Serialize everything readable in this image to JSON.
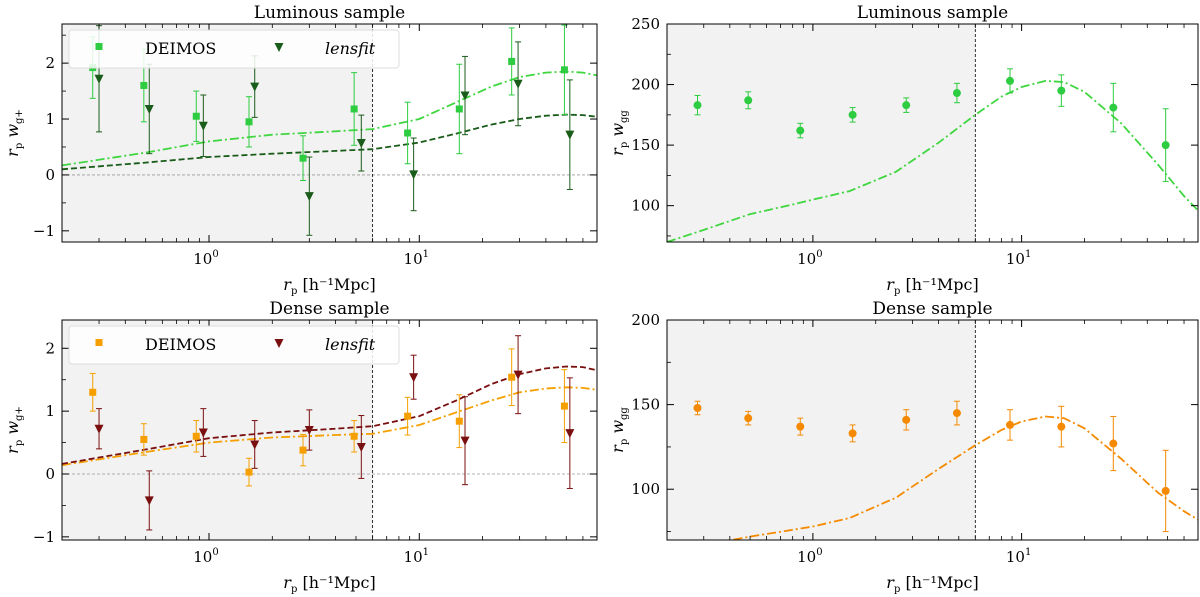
{
  "chart_data": [
    {
      "id": "top-left",
      "type": "scatter",
      "title": "Luminous sample",
      "xscale": "log",
      "xlim": [
        0.2,
        70
      ],
      "ylim": [
        -1.2,
        2.7
      ],
      "xticks": [
        {
          "value": 1,
          "base": "10",
          "exp": "0"
        },
        {
          "value": 10,
          "base": "10",
          "exp": "1"
        }
      ],
      "yticks": [
        -1,
        0,
        1,
        2
      ],
      "xlabel": {
        "main": "r",
        "sub": "p",
        "rest": " [h⁻¹Mpc]"
      },
      "ylabel": {
        "main1": "r",
        "sub1": "p",
        "main2": " w",
        "sub2": "g+"
      },
      "shaded_until": 6,
      "vline": 6,
      "hline": 0,
      "legend": {
        "position": "top-left",
        "items": [
          {
            "label": "DEIMOS",
            "italic": false,
            "color": "#2ecc40",
            "marker": "square"
          },
          {
            "label": "lensfit",
            "italic": true,
            "color": "#1a5c1a",
            "marker": "triangle-down"
          }
        ]
      },
      "series": [
        {
          "name": "DEIMOS",
          "color": "#2ecc40",
          "marker": "square",
          "x": [
            0.28,
            0.49,
            0.87,
            1.55,
            2.8,
            4.9,
            8.8,
            15.5,
            27.5,
            49
          ],
          "y": [
            1.92,
            1.6,
            1.05,
            0.95,
            0.3,
            1.18,
            0.75,
            1.18,
            2.03,
            1.88
          ],
          "err": [
            0.55,
            0.65,
            0.45,
            0.45,
            0.4,
            0.65,
            0.55,
            0.8,
            0.6,
            0.8
          ]
        },
        {
          "name": "lensfit",
          "color": "#1a5c1a",
          "marker": "triangle-down",
          "x": [
            0.3,
            0.52,
            0.94,
            1.65,
            3.0,
            5.3,
            9.4,
            16.5,
            29.5,
            52
          ],
          "y": [
            1.72,
            1.18,
            0.88,
            1.58,
            -0.38,
            0.57,
            0.01,
            1.42,
            1.63,
            0.72
          ],
          "err": [
            0.95,
            0.8,
            0.55,
            0.55,
            0.7,
            0.5,
            0.65,
            0.7,
            0.75,
            0.98
          ]
        }
      ],
      "curves": [
        {
          "color": "#3fd63f",
          "style": "dashdot",
          "x": [
            0.2,
            0.5,
            1,
            2,
            4,
            6,
            10,
            15,
            22,
            30,
            40,
            50,
            60,
            70
          ],
          "y": [
            0.17,
            0.4,
            0.6,
            0.72,
            0.78,
            0.82,
            1.0,
            1.3,
            1.58,
            1.75,
            1.83,
            1.85,
            1.83,
            1.78
          ]
        },
        {
          "color": "#1a5c1a",
          "style": "dashed",
          "x": [
            0.2,
            0.5,
            1,
            2,
            4,
            6,
            10,
            15,
            22,
            30,
            40,
            50,
            60,
            70
          ],
          "y": [
            0.1,
            0.22,
            0.32,
            0.38,
            0.43,
            0.46,
            0.58,
            0.74,
            0.9,
            1.0,
            1.06,
            1.08,
            1.07,
            1.04
          ]
        }
      ]
    },
    {
      "id": "top-right",
      "type": "scatter",
      "title": "Luminous sample",
      "xscale": "log",
      "xlim": [
        0.2,
        70
      ],
      "ylim": [
        70,
        250
      ],
      "xticks": [
        {
          "value": 1,
          "base": "10",
          "exp": "0"
        },
        {
          "value": 10,
          "base": "10",
          "exp": "1"
        }
      ],
      "yticks": [
        100,
        150,
        200,
        250
      ],
      "xlabel": {
        "main": "r",
        "sub": "p",
        "rest": " [h⁻¹Mpc]"
      },
      "ylabel": {
        "main1": "r",
        "sub1": "p",
        "main2": " w",
        "sub2": "gg"
      },
      "shaded_until": 6,
      "vline": 6,
      "series": [
        {
          "name": "DEIMOS",
          "color": "#2ecc40",
          "marker": "circle",
          "x": [
            0.28,
            0.49,
            0.87,
            1.55,
            2.8,
            4.9,
            8.8,
            15.5,
            27.5,
            49
          ],
          "y": [
            183,
            187,
            162,
            175,
            183,
            193,
            203,
            195,
            181,
            150
          ],
          "err": [
            8,
            7,
            6,
            6,
            6,
            8,
            10,
            13,
            20,
            30
          ]
        }
      ],
      "curves": [
        {
          "color": "#3fd63f",
          "style": "dashdot",
          "x": [
            0.2,
            0.3,
            0.5,
            0.8,
            1,
            1.5,
            2.5,
            4,
            6,
            8,
            10,
            13,
            16,
            20,
            30,
            45,
            60,
            70
          ],
          "y": [
            70,
            80,
            93,
            101,
            105,
            112,
            128,
            152,
            175,
            190,
            198,
            203,
            202,
            194,
            168,
            134,
            108,
            96
          ]
        }
      ]
    },
    {
      "id": "bottom-left",
      "type": "scatter",
      "title": "Dense sample",
      "xscale": "log",
      "xlim": [
        0.2,
        70
      ],
      "ylim": [
        -1.05,
        2.45
      ],
      "xticks": [
        {
          "value": 1,
          "base": "10",
          "exp": "0"
        },
        {
          "value": 10,
          "base": "10",
          "exp": "1"
        }
      ],
      "yticks": [
        -1,
        0,
        1,
        2
      ],
      "xlabel": {
        "main": "r",
        "sub": "p",
        "rest": " [h⁻¹Mpc]"
      },
      "ylabel": {
        "main1": "r",
        "sub1": "p",
        "main2": " w",
        "sub2": "g+"
      },
      "shaded_until": 6,
      "vline": 6,
      "hline": 0,
      "legend": {
        "position": "top-left",
        "items": [
          {
            "label": "DEIMOS",
            "italic": false,
            "color": "#f5a000",
            "marker": "square"
          },
          {
            "label": "lensfit",
            "italic": true,
            "color": "#7a0f0f",
            "marker": "triangle-down"
          }
        ]
      },
      "series": [
        {
          "name": "DEIMOS",
          "color": "#f5a000",
          "marker": "square",
          "x": [
            0.28,
            0.49,
            0.87,
            1.55,
            2.8,
            4.9,
            8.8,
            15.5,
            27.5,
            49
          ],
          "y": [
            1.3,
            0.55,
            0.6,
            0.03,
            0.38,
            0.6,
            0.92,
            0.84,
            1.54,
            1.08
          ],
          "err": [
            0.3,
            0.25,
            0.25,
            0.22,
            0.25,
            0.25,
            0.3,
            0.42,
            0.45,
            0.58
          ]
        },
        {
          "name": "lensfit",
          "color": "#7a0f0f",
          "marker": "triangle-down",
          "x": [
            0.3,
            0.52,
            0.94,
            1.65,
            3.0,
            5.3,
            9.4,
            16.5,
            29.5,
            52
          ],
          "y": [
            0.72,
            -0.42,
            0.66,
            0.47,
            0.7,
            0.43,
            1.54,
            0.53,
            1.58,
            0.65
          ],
          "err": [
            0.32,
            0.47,
            0.38,
            0.38,
            0.32,
            0.5,
            0.35,
            0.7,
            0.62,
            0.88
          ]
        }
      ],
      "curves": [
        {
          "color": "#f5a000",
          "style": "dashdot",
          "x": [
            0.2,
            0.5,
            1,
            2,
            4,
            6,
            10,
            15,
            22,
            30,
            40,
            50,
            60,
            70
          ],
          "y": [
            0.14,
            0.35,
            0.5,
            0.58,
            0.62,
            0.64,
            0.78,
            0.98,
            1.17,
            1.3,
            1.36,
            1.38,
            1.37,
            1.34
          ]
        },
        {
          "color": "#7a0f0f",
          "style": "dashed",
          "x": [
            0.2,
            0.5,
            1,
            2,
            4,
            6,
            10,
            15,
            22,
            30,
            40,
            50,
            60,
            70
          ],
          "y": [
            0.16,
            0.39,
            0.57,
            0.66,
            0.72,
            0.76,
            0.92,
            1.17,
            1.43,
            1.59,
            1.68,
            1.71,
            1.7,
            1.65
          ]
        }
      ]
    },
    {
      "id": "bottom-right",
      "type": "scatter",
      "title": "Dense sample",
      "xscale": "log",
      "xlim": [
        0.2,
        70
      ],
      "ylim": [
        70,
        200
      ],
      "xticks": [
        {
          "value": 1,
          "base": "10",
          "exp": "0"
        },
        {
          "value": 10,
          "base": "10",
          "exp": "1"
        }
      ],
      "yticks": [
        100,
        150,
        200
      ],
      "xlabel": {
        "main": "r",
        "sub": "p",
        "rest": " [h⁻¹Mpc]"
      },
      "ylabel": {
        "main1": "r",
        "sub1": "p",
        "main2": " w",
        "sub2": "gg"
      },
      "shaded_until": 6,
      "vline": 6,
      "series": [
        {
          "name": "DEIMOS",
          "color": "#f58a00",
          "marker": "circle",
          "x": [
            0.28,
            0.49,
            0.87,
            1.55,
            2.8,
            4.9,
            8.8,
            15.5,
            27.5,
            49
          ],
          "y": [
            148,
            142,
            137,
            133,
            141,
            145,
            138,
            137,
            127,
            99
          ],
          "err": [
            4,
            4,
            5,
            5,
            6,
            7,
            9,
            12,
            16,
            24
          ]
        }
      ],
      "curves": [
        {
          "color": "#f58a00",
          "style": "dashdot",
          "x": [
            0.2,
            0.3,
            0.5,
            0.8,
            1,
            1.5,
            2.5,
            4,
            6,
            8,
            10,
            13,
            16,
            20,
            30,
            45,
            60,
            70
          ],
          "y": [
            62,
            67,
            72,
            76,
            78,
            83,
            95,
            112,
            126,
            135,
            140,
            143,
            142,
            136,
            118,
            98,
            87,
            82
          ]
        }
      ]
    }
  ]
}
